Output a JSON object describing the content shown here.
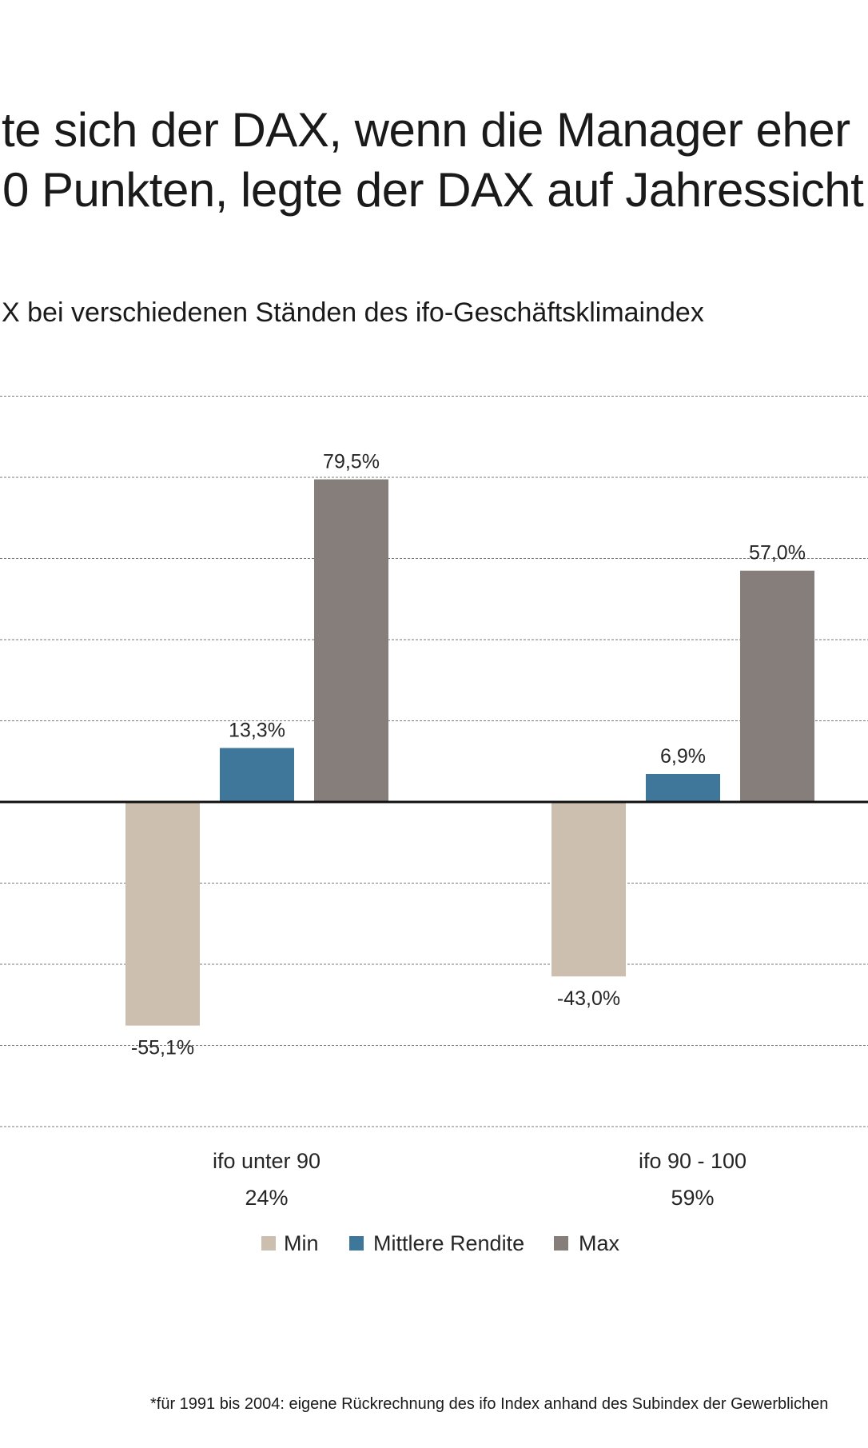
{
  "headline": {
    "line1": "te sich der DAX, wenn die Manager eher",
    "line2": "0 Punkten, legte der DAX auf Jahressicht"
  },
  "subtitle": "X bei verschiedenen Ständen des ifo-Geschäftsklimaindex",
  "footnote": "*für 1991 bis 2004: eigene Rückrechnung des ifo Index anhand des Subindex der Gewerblichen",
  "chart_data": {
    "type": "bar",
    "title": "",
    "xlabel": "",
    "ylabel": "",
    "ylim": [
      -80,
      100
    ],
    "grid": true,
    "gridline_values": [
      100,
      80,
      60,
      40,
      20,
      -20,
      -40,
      -60,
      -80
    ],
    "categories": [
      "ifo unter 90",
      "ifo 90 - 100"
    ],
    "category_shares": [
      "24%",
      "59%"
    ],
    "series": [
      {
        "name": "Min",
        "color": "#ccbfb0",
        "values": [
          -55.1,
          -43.0
        ],
        "labels": [
          "-55,1%",
          "-43,0%"
        ]
      },
      {
        "name": "Mittlere Rendite",
        "color": "#3e7799",
        "values": [
          13.3,
          6.9
        ],
        "labels": [
          "13,3%",
          "6,9%"
        ]
      },
      {
        "name": "Max",
        "color": "#867e7b",
        "values": [
          79.5,
          57.0
        ],
        "labels": [
          "79,5%",
          "57,0%"
        ]
      }
    ],
    "legend_position": "bottom-center"
  }
}
